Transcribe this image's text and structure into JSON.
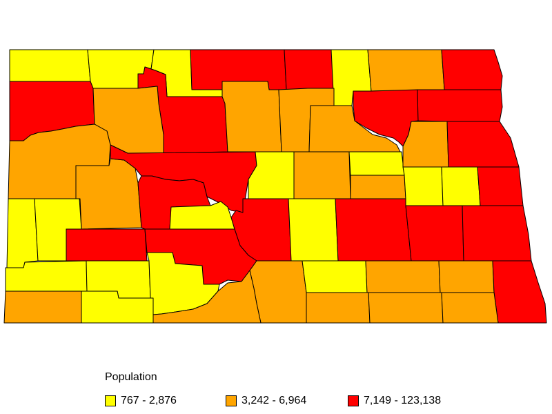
{
  "legend": {
    "title": "Population",
    "classes": [
      {
        "label": "767 - 2,876",
        "color": "#ffff00"
      },
      {
        "label": "3,242 - 6,964",
        "color": "#ffa500"
      },
      {
        "label": "7,149 - 123,138",
        "color": "#ff0000"
      }
    ]
  }
}
